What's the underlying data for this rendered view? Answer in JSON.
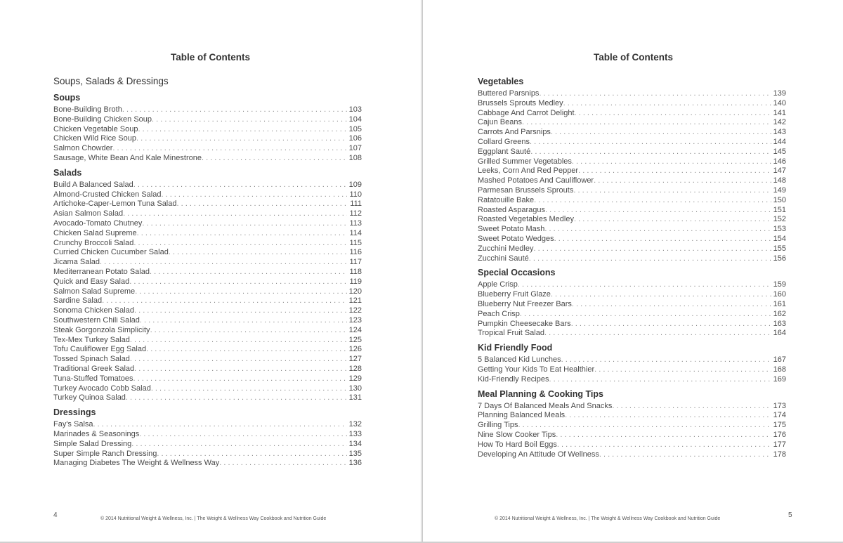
{
  "left_page": {
    "title": "Table of Contents",
    "chapter": "Soups, Salads & Dressings",
    "sections": [
      {
        "heading": "Soups",
        "entries": [
          {
            "title": "Bone-Building Broth",
            "page": "103"
          },
          {
            "title": "Bone-Building Chicken Soup",
            "page": "104"
          },
          {
            "title": "Chicken Vegetable Soup",
            "page": "105"
          },
          {
            "title": "Chicken Wild Rice Soup",
            "page": "106"
          },
          {
            "title": "Salmon Chowder",
            "page": "107"
          },
          {
            "title": "Sausage, White Bean And Kale Minestrone",
            "page": "108"
          }
        ]
      },
      {
        "heading": "Salads",
        "entries": [
          {
            "title": "Build A Balanced Salad",
            "page": "109"
          },
          {
            "title": "Almond-Crusted Chicken Salad",
            "page": "110"
          },
          {
            "title": "Artichoke-Caper-Lemon Tuna Salad",
            "page": "111"
          },
          {
            "title": "Asian Salmon Salad",
            "page": "112"
          },
          {
            "title": "Avocado-Tomato Chutney",
            "page": "113"
          },
          {
            "title": "Chicken Salad Supreme",
            "page": "114"
          },
          {
            "title": "Crunchy Broccoli Salad",
            "page": "115"
          },
          {
            "title": "Curried Chicken Cucumber Salad",
            "page": "116"
          },
          {
            "title": "Jicama Salad",
            "page": "117"
          },
          {
            "title": "Mediterranean Potato Salad",
            "page": "118"
          },
          {
            "title": "Quick and Easy Salad",
            "page": "119"
          },
          {
            "title": "Salmon Salad Supreme",
            "page": "120"
          },
          {
            "title": "Sardine Salad",
            "page": "121"
          },
          {
            "title": "Sonoma Chicken Salad",
            "page": "122"
          },
          {
            "title": "Southwestern Chili Salad",
            "page": "123"
          },
          {
            "title": "Steak Gorgonzola Simplicity",
            "page": "124"
          },
          {
            "title": "Tex-Mex Turkey Salad",
            "page": "125"
          },
          {
            "title": "Tofu Cauliflower Egg Salad",
            "page": "126"
          },
          {
            "title": "Tossed Spinach Salad",
            "page": "127"
          },
          {
            "title": "Traditional Greek Salad",
            "page": "128"
          },
          {
            "title": "Tuna-Stuffed Tomatoes",
            "page": "129"
          },
          {
            "title": "Turkey Avocado Cobb Salad",
            "page": "130"
          },
          {
            "title": "Turkey Quinoa Salad",
            "page": "131"
          }
        ]
      },
      {
        "heading": "Dressings",
        "entries": [
          {
            "title": "Fay's Salsa",
            "page": "132"
          },
          {
            "title": "Marinades & Seasonings",
            "page": "133"
          },
          {
            "title": "Simple Salad Dressing",
            "page": "134"
          },
          {
            "title": "Super Simple Ranch Dressing",
            "page": "135"
          },
          {
            "title": "Managing Diabetes The Weight & Wellness Way",
            "page": "136"
          }
        ]
      }
    ],
    "page_number": "4",
    "footer": "© 2014 Nutritional Weight & Wellness, Inc. | The Weight & Wellness Way Cookbook and Nutrition Guide"
  },
  "right_page": {
    "title": "Table of Contents",
    "sections": [
      {
        "heading": "Vegetables",
        "entries": [
          {
            "title": "Buttered Parsnips",
            "page": "139"
          },
          {
            "title": "Brussels Sprouts Medley",
            "page": "140"
          },
          {
            "title": "Cabbage And Carrot Delight",
            "page": "141"
          },
          {
            "title": "Cajun Beans",
            "page": "142"
          },
          {
            "title": "Carrots And Parsnips",
            "page": "143"
          },
          {
            "title": "Collard Greens",
            "page": "144"
          },
          {
            "title": "Eggplant Sauté",
            "page": "145"
          },
          {
            "title": "Grilled Summer Vegetables",
            "page": "146"
          },
          {
            "title": "Leeks, Corn And Red Pepper",
            "page": "147"
          },
          {
            "title": "Mashed Potatoes And Cauliflower",
            "page": "148"
          },
          {
            "title": "Parmesan Brussels Sprouts",
            "page": "149"
          },
          {
            "title": "Ratatouille Bake",
            "page": "150"
          },
          {
            "title": "Roasted Asparagus",
            "page": "151"
          },
          {
            "title": "Roasted Vegetables Medley",
            "page": "152"
          },
          {
            "title": "Sweet Potato Mash",
            "page": "153"
          },
          {
            "title": "Sweet Potato Wedges",
            "page": "154"
          },
          {
            "title": "Zucchini Medley",
            "page": "155"
          },
          {
            "title": "Zucchini Sauté",
            "page": "156"
          }
        ]
      },
      {
        "heading": "Special Occasions",
        "entries": [
          {
            "title": "Apple Crisp",
            "page": "159"
          },
          {
            "title": "Blueberry Fruit Glaze",
            "page": "160"
          },
          {
            "title": "Blueberry Nut Freezer Bars",
            "page": "161"
          },
          {
            "title": "Peach Crisp",
            "page": "162"
          },
          {
            "title": "Pumpkin Cheesecake Bars",
            "page": "163"
          },
          {
            "title": "Tropical Fruit Salad",
            "page": "164"
          }
        ]
      },
      {
        "heading": "Kid Friendly Food",
        "entries": [
          {
            "title": "5 Balanced Kid Lunches",
            "page": "167"
          },
          {
            "title": "Getting Your Kids To Eat Healthier",
            "page": "168"
          },
          {
            "title": "Kid-Friendly Recipes",
            "page": "169"
          }
        ]
      },
      {
        "heading": "Meal Planning & Cooking Tips",
        "entries": [
          {
            "title": "7 Days Of Balanced Meals And Snacks",
            "page": "173"
          },
          {
            "title": "Planning Balanced Meals",
            "page": "174"
          },
          {
            "title": "Grilling Tips",
            "page": "175"
          },
          {
            "title": "Nine Slow Cooker Tips",
            "page": "176"
          },
          {
            "title": "How To Hard Boil Eggs",
            "page": "177"
          },
          {
            "title": "Developing An Attitude Of Wellness",
            "page": "178"
          }
        ]
      }
    ],
    "page_number": "5",
    "footer": "© 2014 Nutritional Weight & Wellness, Inc. | The Weight & Wellness Way Cookbook and Nutrition Guide"
  }
}
